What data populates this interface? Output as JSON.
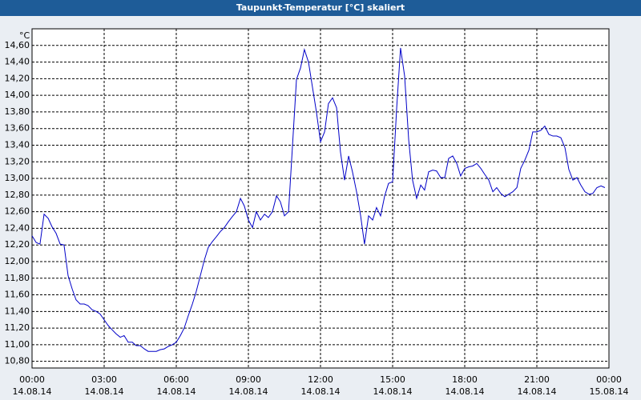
{
  "chart_data": {
    "type": "line",
    "title": "Taupunkt-Temperatur [°C] skaliert",
    "y_label": "°C",
    "x": [
      0,
      0.17,
      0.33,
      0.5,
      0.67,
      0.83,
      1,
      1.17,
      1.33,
      1.5,
      1.67,
      1.83,
      2,
      2.17,
      2.33,
      2.5,
      2.67,
      2.83,
      3,
      3.17,
      3.33,
      3.5,
      3.67,
      3.83,
      4,
      4.17,
      4.33,
      4.5,
      4.67,
      4.83,
      5,
      5.17,
      5.33,
      5.5,
      5.67,
      5.83,
      6,
      6.17,
      6.33,
      6.5,
      6.67,
      6.83,
      7,
      7.17,
      7.33,
      7.5,
      7.67,
      7.83,
      8,
      8.17,
      8.33,
      8.5,
      8.67,
      8.83,
      9,
      9.17,
      9.33,
      9.5,
      9.67,
      9.83,
      10,
      10.17,
      10.33,
      10.5,
      10.67,
      10.83,
      11,
      11.17,
      11.33,
      11.5,
      11.67,
      11.83,
      12,
      12.17,
      12.33,
      12.5,
      12.67,
      12.83,
      13,
      13.17,
      13.33,
      13.5,
      13.67,
      13.83,
      14,
      14.17,
      14.33,
      14.5,
      14.67,
      14.83,
      15,
      15.17,
      15.33,
      15.5,
      15.67,
      15.83,
      16,
      16.17,
      16.33,
      16.5,
      16.67,
      16.83,
      17,
      17.17,
      17.33,
      17.5,
      17.67,
      17.83,
      18,
      18.17,
      18.33,
      18.5,
      18.67,
      18.83,
      19,
      19.17,
      19.33,
      19.5,
      19.67,
      19.83,
      20,
      20.17,
      20.33,
      20.5,
      20.67,
      20.83,
      21,
      21.17,
      21.33,
      21.5,
      21.67,
      21.83,
      22,
      22.17,
      22.33,
      22.5,
      22.67,
      22.83,
      23,
      23.17,
      23.33,
      23.5,
      23.67,
      23.83
    ],
    "series": [
      {
        "color": "#0000c8",
        "values": [
          12.31,
          12.23,
          12.21,
          12.57,
          12.52,
          12.42,
          12.34,
          12.21,
          12.2,
          11.83,
          11.67,
          11.54,
          11.49,
          11.49,
          11.47,
          11.42,
          11.4,
          11.37,
          11.3,
          11.23,
          11.18,
          11.13,
          11.09,
          11.11,
          11.03,
          11.03,
          10.99,
          10.99,
          10.95,
          10.92,
          10.92,
          10.92,
          10.94,
          10.95,
          10.98,
          11.0,
          11.03,
          11.11,
          11.2,
          11.35,
          11.49,
          11.64,
          11.83,
          12.02,
          12.17,
          12.24,
          12.3,
          12.36,
          12.41,
          12.48,
          12.54,
          12.6,
          12.76,
          12.67,
          12.5,
          12.41,
          12.6,
          12.5,
          12.57,
          12.53,
          12.6,
          12.79,
          12.72,
          12.55,
          12.6,
          13.37,
          14.19,
          14.33,
          14.55,
          14.4,
          14.09,
          13.8,
          13.44,
          13.56,
          13.9,
          13.97,
          13.85,
          13.32,
          12.98,
          13.27,
          13.08,
          12.84,
          12.55,
          12.21,
          12.55,
          12.5,
          12.65,
          12.55,
          12.79,
          12.94,
          12.96,
          13.85,
          14.57,
          14.23,
          13.46,
          12.98,
          12.76,
          12.92,
          12.86,
          13.08,
          13.1,
          13.09,
          13.01,
          13.01,
          13.24,
          13.27,
          13.18,
          13.03,
          13.12,
          13.14,
          13.15,
          13.18,
          13.12,
          13.05,
          12.98,
          12.84,
          12.89,
          12.82,
          12.78,
          12.81,
          12.84,
          12.89,
          13.12,
          13.22,
          13.34,
          13.56,
          13.56,
          13.58,
          13.63,
          13.53,
          13.51,
          13.51,
          13.49,
          13.37,
          13.11,
          12.98,
          13.01,
          12.92,
          12.84,
          12.81,
          12.82,
          12.89,
          12.91,
          12.89
        ]
      }
    ],
    "xlim": [
      0,
      24
    ],
    "xticks": [
      {
        "value": 0,
        "label": "00:00"
      },
      {
        "value": 3,
        "label": "03:00"
      },
      {
        "value": 6,
        "label": "06:00"
      },
      {
        "value": 9,
        "label": "09:00"
      },
      {
        "value": 12,
        "label": "12:00"
      },
      {
        "value": 15,
        "label": "15:00"
      },
      {
        "value": 18,
        "label": "18:00"
      },
      {
        "value": 21,
        "label": "21:00"
      },
      {
        "value": 24,
        "label": "00:00"
      }
    ],
    "xtick_dates": [
      "14.08.14",
      "14.08.14",
      "14.08.14",
      "14.08.14",
      "14.08.14",
      "14.08.14",
      "14.08.14",
      "14.08.14",
      "15.08.14"
    ],
    "ylim": [
      10.72,
      14.8
    ],
    "yticks": [
      {
        "value": 10.8,
        "label": "10,80"
      },
      {
        "value": 11,
        "label": "11,00"
      },
      {
        "value": 11.2,
        "label": "11,20"
      },
      {
        "value": 11.4,
        "label": "11,40"
      },
      {
        "value": 11.6,
        "label": "11,60"
      },
      {
        "value": 11.8,
        "label": "11,80"
      },
      {
        "value": 12,
        "label": "12,00"
      },
      {
        "value": 12.2,
        "label": "12,20"
      },
      {
        "value": 12.4,
        "label": "12,40"
      },
      {
        "value": 12.6,
        "label": "12,60"
      },
      {
        "value": 12.8,
        "label": "12,80"
      },
      {
        "value": 13,
        "label": "13,00"
      },
      {
        "value": 13.2,
        "label": "13,20"
      },
      {
        "value": 13.4,
        "label": "13,40"
      },
      {
        "value": 13.6,
        "label": "13,60"
      },
      {
        "value": 13.8,
        "label": "13,80"
      },
      {
        "value": 14,
        "label": "14,00"
      },
      {
        "value": 14.2,
        "label": "14,20"
      },
      {
        "value": 14.4,
        "label": "14,40"
      },
      {
        "value": 14.6,
        "label": "14,60"
      }
    ],
    "grid": true
  }
}
